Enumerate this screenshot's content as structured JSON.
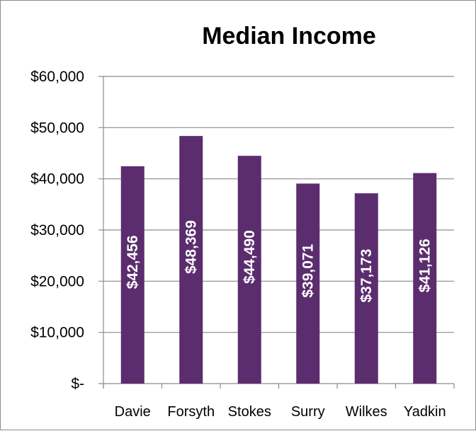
{
  "chart_data": {
    "type": "bar",
    "title": "Median Income",
    "xlabel": "",
    "ylabel": "",
    "categories": [
      "Davie",
      "Forsyth",
      "Stokes",
      "Surry",
      "Wilkes",
      "Yadkin"
    ],
    "values": [
      42456,
      48369,
      44490,
      39071,
      37173,
      41126
    ],
    "data_labels": [
      "$42,456",
      "$48,369",
      "$44,490",
      "$39,071",
      "$37,173",
      "$41,126"
    ],
    "ylim": [
      0,
      60000
    ],
    "yticks": [
      0,
      10000,
      20000,
      30000,
      40000,
      50000,
      60000
    ],
    "ytick_labels": [
      "$-",
      "$10,000",
      "$20,000",
      "$30,000",
      "$40,000",
      "$50,000",
      "$60,000"
    ],
    "grid": true,
    "legend": "none",
    "colors": {
      "bar": "#5b2d6e",
      "grid": "#8c8c8c",
      "label": "#ffffff"
    }
  }
}
